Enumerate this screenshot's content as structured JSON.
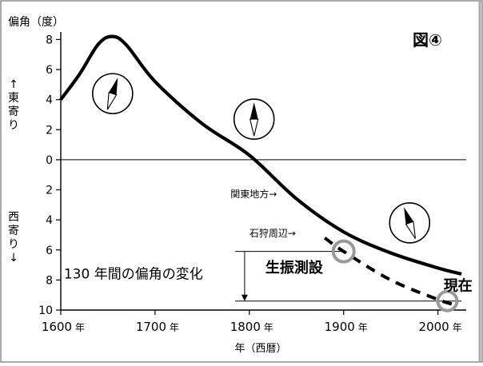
{
  "chart_data": {
    "type": "line",
    "figure_label": "図④",
    "ylabel": "偏角（度）",
    "ylabel_east": "←東寄り",
    "ylabel_west": "西寄り↓",
    "xlabel": "年（西暦）",
    "xlim": [
      1600,
      2030
    ],
    "ylim": [
      -10,
      8.5
    ],
    "x_ticks": [
      {
        "value": 1600,
        "label": "1600"
      },
      {
        "value": 1700,
        "label": "1700"
      },
      {
        "value": 1800,
        "label": "1800"
      },
      {
        "value": 1900,
        "label": "1900"
      },
      {
        "value": 2000,
        "label": "2000"
      }
    ],
    "x_tick_suffix": "年",
    "y_ticks": [
      {
        "value": 8,
        "label": "8"
      },
      {
        "value": 6,
        "label": "6"
      },
      {
        "value": 4,
        "label": "4"
      },
      {
        "value": 2,
        "label": "2"
      },
      {
        "value": 0,
        "label": "0"
      },
      {
        "value": -2,
        "label": "2"
      },
      {
        "value": -4,
        "label": "4"
      },
      {
        "value": -6,
        "label": "6"
      },
      {
        "value": -8,
        "label": "8"
      },
      {
        "value": -10,
        "label": "10"
      }
    ],
    "series": [
      {
        "name": "関東地方→",
        "style": "solid",
        "x": [
          1600,
          1620,
          1640,
          1655,
          1670,
          1700,
          1750,
          1800,
          1850,
          1900,
          1950,
          2000,
          2025
        ],
        "y": [
          4.0,
          5.7,
          7.7,
          8.2,
          7.6,
          5.2,
          2.4,
          0.3,
          -2.6,
          -4.8,
          -6.2,
          -7.2,
          -7.6
        ]
      },
      {
        "name": "石狩周辺→",
        "style": "dashed",
        "x": [
          1880,
          1900,
          1950,
          2000,
          2015
        ],
        "y": [
          -5.2,
          -6.1,
          -8.0,
          -9.3,
          -9.6
        ]
      }
    ],
    "annotations": {
      "change_label": "130 年間の偏角の変化",
      "change_from": -6.1,
      "change_to": -9.4,
      "survey_label": "生振測設",
      "survey_year": 1900,
      "present_label": "現在",
      "present_year": 2010
    },
    "compasses": [
      {
        "name": "compass-1650",
        "year": 1655,
        "y": 4.4,
        "tilt_deg": 18
      },
      {
        "name": "compass-1800",
        "year": 1805,
        "y": 2.7,
        "tilt_deg": 0
      },
      {
        "name": "compass-1950",
        "year": 1970,
        "y": -4.2,
        "tilt_deg": -20
      }
    ],
    "grid": false,
    "zero_line": true
  }
}
